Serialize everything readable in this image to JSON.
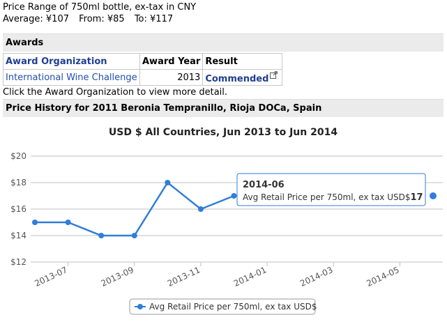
{
  "price_range": {
    "title": "Price Range of 750ml bottle, ex-tax in CNY",
    "average": "Average: ¥107",
    "from": "From: ¥85",
    "to": "To: ¥117"
  },
  "awards": {
    "header": "Awards",
    "columns": [
      "Award Organization",
      "Award Year",
      "Result"
    ],
    "rows": [
      {
        "organization": "International Wine Challenge",
        "year": "2013",
        "result": "Commended"
      }
    ],
    "note": "Click the Award Organization to view more detail."
  },
  "price_history": {
    "header": "Price History for 2011 Beronia Tempranillo, Rioja DOCa, Spain"
  },
  "icons": {
    "external_link": "external-link-icon"
  },
  "colors": {
    "series": "#2f7ed8",
    "link": "#1f4fae",
    "header_bg": "#ebebeb"
  },
  "chart_data": {
    "type": "line",
    "title": "USD $ All Countries, Jun 2013 to Jun 2014",
    "x_tick_labels": [
      "2013-07",
      "2013-09",
      "2013-11",
      "2014-01",
      "2014-03",
      "2014-05"
    ],
    "y_tick_labels": [
      "$12",
      "$14",
      "$16",
      "$18",
      "$20"
    ],
    "ylim": [
      12,
      20
    ],
    "x_range": [
      "2013-06",
      "2014-06"
    ],
    "grid": true,
    "legend_position": "bottom-center",
    "series": [
      {
        "name": "Avg Retail Price per 750ml, ex tax USD$",
        "x": [
          "2013-06",
          "2013-07",
          "2013-08",
          "2013-09",
          "2013-10",
          "2013-11",
          "2013-12",
          "2014-06"
        ],
        "values": [
          15,
          15,
          14,
          14,
          18,
          16,
          17,
          17
        ]
      }
    ],
    "tooltip": {
      "date": "2014-06",
      "series": "Avg Retail Price per 750ml, ex tax USD$",
      "value": "17"
    }
  }
}
